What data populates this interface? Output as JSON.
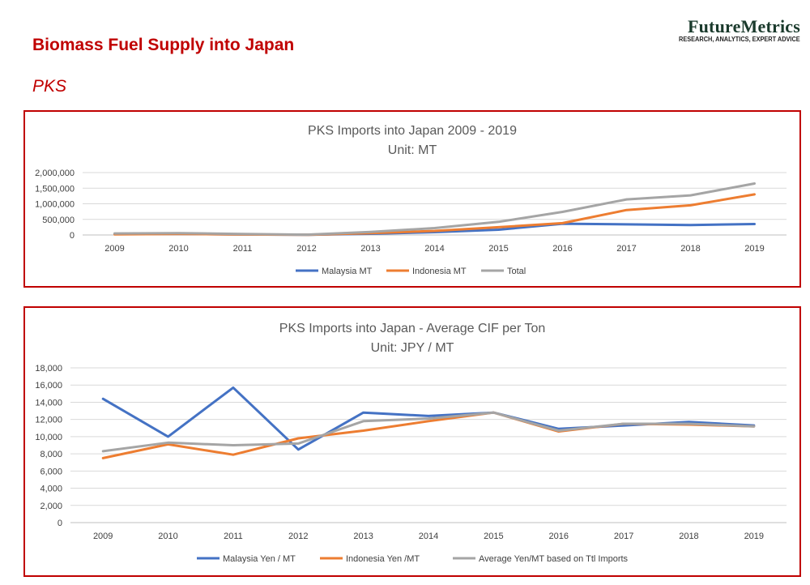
{
  "page": {
    "title": "Biomass Fuel Supply into Japan",
    "subtitle": "PKS"
  },
  "logo": {
    "name": "FutureMetrics",
    "tagline": "RESEARCH, ANALYTICS, EXPERT ADVICE"
  },
  "colors": {
    "accent_red": "#c00000",
    "malaysia": "#4472c4",
    "indonesia": "#ed7d31",
    "total": "#a5a5a5",
    "grid": "#d9d9d9"
  },
  "chart_data": [
    {
      "type": "line",
      "title": "PKS Imports into Japan 2009 - 2019",
      "subtitle": "Unit: MT",
      "categories": [
        "2009",
        "2010",
        "2011",
        "2012",
        "2013",
        "2014",
        "2015",
        "2016",
        "2017",
        "2018",
        "2019"
      ],
      "ylim": [
        0,
        2000000
      ],
      "yticks": [
        0,
        500000,
        1000000,
        1500000,
        2000000
      ],
      "ytick_labels": [
        "0",
        "500,000",
        "1,000,000",
        "1,500,000",
        "2,000,000"
      ],
      "grid": true,
      "legend_position": "bottom",
      "series": [
        {
          "name": "Malaysia MT",
          "color": "#4472c4",
          "values": [
            30000,
            30000,
            15000,
            5000,
            40000,
            90000,
            170000,
            360000,
            340000,
            320000,
            350000
          ]
        },
        {
          "name": "Indonesia MT",
          "color": "#ed7d31",
          "values": [
            20000,
            30000,
            15000,
            5000,
            60000,
            130000,
            250000,
            380000,
            800000,
            950000,
            1300000
          ]
        },
        {
          "name": "Total",
          "color": "#a5a5a5",
          "values": [
            50000,
            60000,
            30000,
            10000,
            100000,
            220000,
            420000,
            740000,
            1140000,
            1270000,
            1650000
          ]
        }
      ]
    },
    {
      "type": "line",
      "title": "PKS Imports into Japan - Average CIF per Ton",
      "subtitle": "Unit: JPY / MT",
      "categories": [
        "2009",
        "2010",
        "2011",
        "2012",
        "2013",
        "2014",
        "2015",
        "2016",
        "2017",
        "2018",
        "2019"
      ],
      "ylim": [
        0,
        18000
      ],
      "yticks": [
        0,
        2000,
        4000,
        6000,
        8000,
        10000,
        12000,
        14000,
        16000,
        18000
      ],
      "ytick_labels": [
        "0",
        "2,000",
        "4,000",
        "6,000",
        "8,000",
        "10,000",
        "12,000",
        "14,000",
        "16,000",
        "18,000"
      ],
      "grid": true,
      "legend_position": "bottom",
      "series": [
        {
          "name": "Malaysia Yen / MT",
          "color": "#4472c4",
          "values": [
            14400,
            10000,
            15700,
            8500,
            12800,
            12400,
            12800,
            10900,
            11300,
            11700,
            11300
          ]
        },
        {
          "name": "Indonesia Yen /MT",
          "color": "#ed7d31",
          "values": [
            7500,
            9100,
            7900,
            9800,
            10700,
            11800,
            12800,
            10600,
            11500,
            11400,
            11200
          ]
        },
        {
          "name": "Average Yen/MT based on Ttl Imports",
          "color": "#a5a5a5",
          "values": [
            8300,
            9300,
            9000,
            9200,
            11800,
            12100,
            12800,
            10700,
            11500,
            11500,
            11200
          ]
        }
      ]
    }
  ]
}
